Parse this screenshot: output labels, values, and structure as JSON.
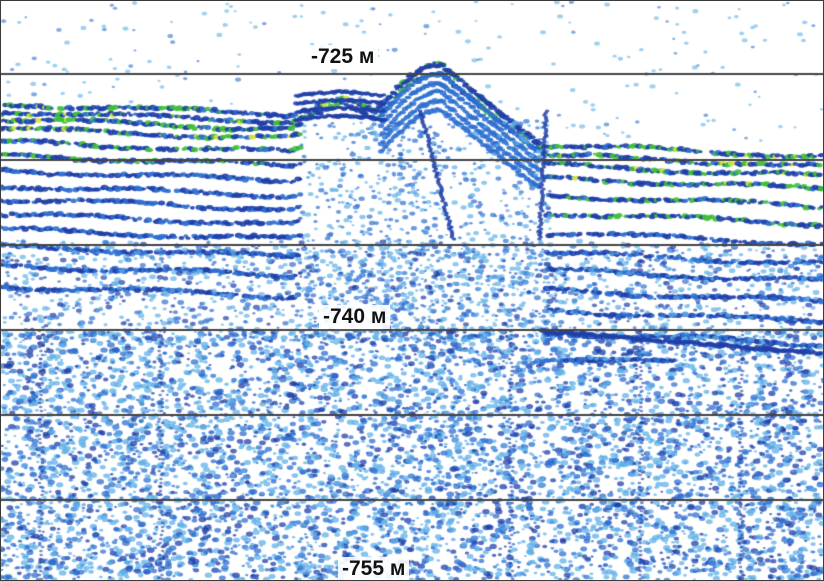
{
  "depth_labels": {
    "top": "-725 м",
    "middle": "-740 м",
    "bottom": "-755 м"
  },
  "colors": {
    "background": "#ffffff",
    "gridline": "#444444",
    "signal_dark": "#1f3fa8",
    "signal_mid": "#2d6fd0",
    "signal_light": "#5fb0e8",
    "signal_green": "#3fbf3a",
    "signal_yellow": "#d9e23a"
  }
}
